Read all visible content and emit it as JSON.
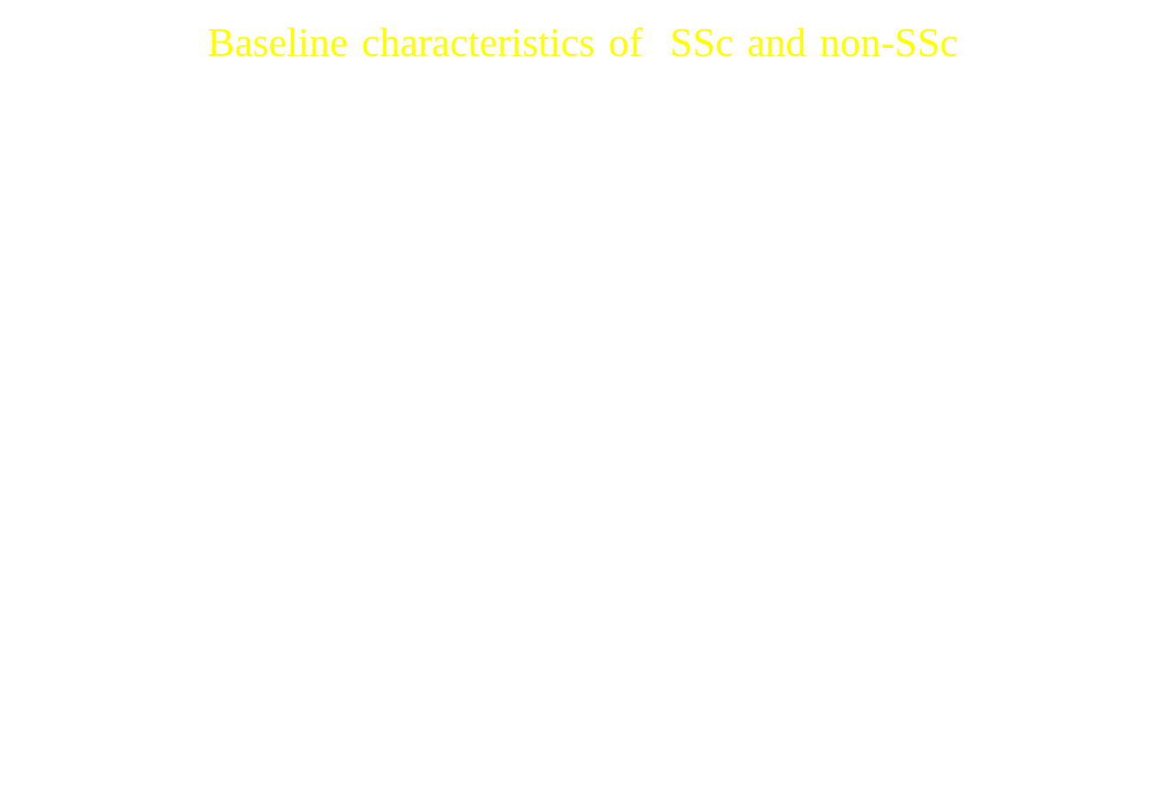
{
  "slide": {
    "title": "Baseline characteristics of  SSc and non-SSc",
    "title_color": "#ffff00",
    "background_color": "#ffffff"
  }
}
